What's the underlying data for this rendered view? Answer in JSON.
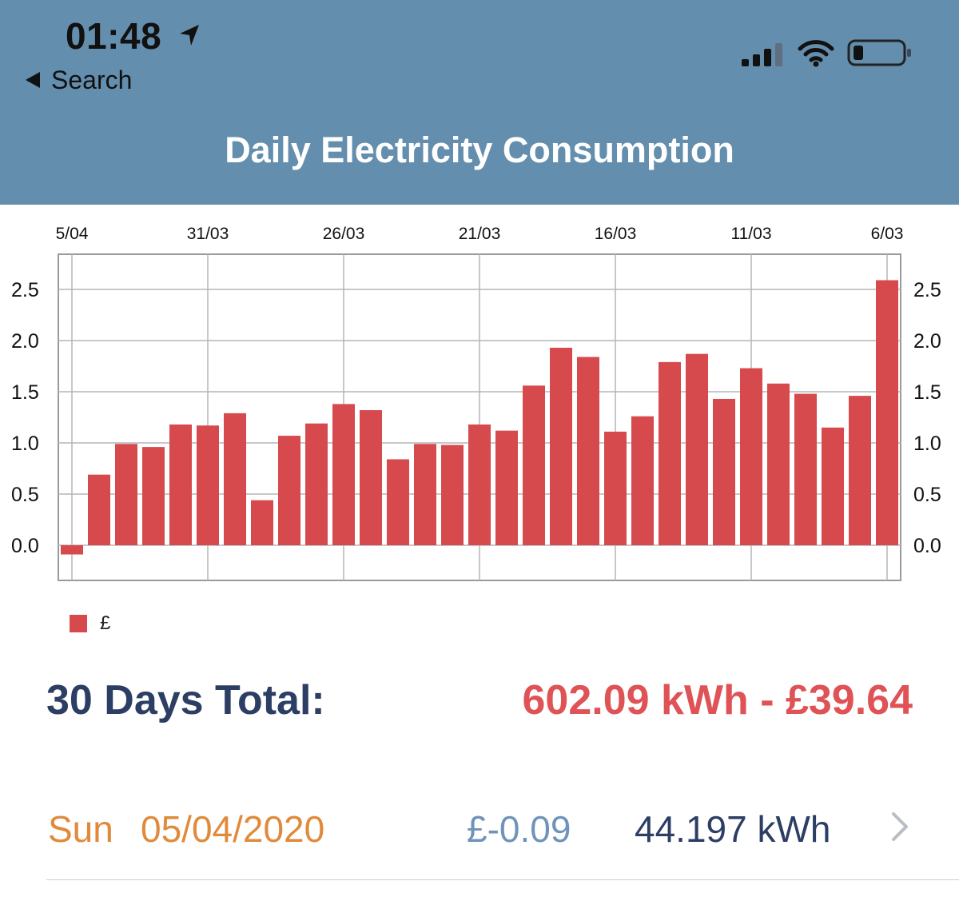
{
  "status_bar": {
    "time": "01:48",
    "icons": [
      "location-arrow-icon",
      "cellular-signal-icon",
      "wifi-icon",
      "battery-low-icon"
    ]
  },
  "nav": {
    "back_label": "Search"
  },
  "header": {
    "title": "Daily Electricity Consumption"
  },
  "colors": {
    "header_bg": "#648ead",
    "bar": "#d64a4d",
    "total_label": "#2c3e63",
    "total_value": "#df5356",
    "date": "#e08a3b",
    "cost": "#6f93b9",
    "kwh": "#2c3e63"
  },
  "chart_data": {
    "type": "bar",
    "title": "",
    "xlabel": "",
    "ylabel": "",
    "x_axis_position": "top",
    "y_axes": [
      "left",
      "right"
    ],
    "ylim": [
      -0.1,
      2.75
    ],
    "y_ticks": [
      "0.0",
      "0.5",
      "1.0",
      "1.5",
      "2.0",
      "2.5"
    ],
    "x_ticks": [
      "5/04",
      "31/03",
      "26/03",
      "21/03",
      "16/03",
      "11/03",
      "6/03"
    ],
    "grid": true,
    "legend_position": "bottom-left",
    "categories": [
      "5/04",
      "4/04",
      "3/04",
      "2/04",
      "1/04",
      "31/03",
      "30/03",
      "29/03",
      "28/03",
      "27/03",
      "26/03",
      "25/03",
      "24/03",
      "23/03",
      "22/03",
      "21/03",
      "20/03",
      "19/03",
      "18/03",
      "17/03",
      "16/03",
      "15/03",
      "14/03",
      "13/03",
      "12/03",
      "11/03",
      "10/03",
      "9/03",
      "8/03",
      "7/03",
      "6/03"
    ],
    "series": [
      {
        "name": "£",
        "color": "#d64a4d",
        "values": [
          -0.09,
          0.69,
          0.99,
          0.96,
          1.18,
          1.17,
          1.29,
          0.44,
          1.07,
          1.19,
          1.38,
          1.32,
          0.84,
          0.99,
          0.98,
          1.18,
          1.12,
          1.56,
          1.93,
          1.84,
          1.11,
          1.26,
          1.79,
          1.87,
          1.43,
          1.73,
          1.58,
          1.48,
          1.15,
          1.46,
          2.59
        ]
      }
    ]
  },
  "legend": {
    "swatch_label": "£"
  },
  "summary": {
    "label": "30 Days Total:",
    "value": "602.09 kWh - £39.64"
  },
  "selected_day": {
    "weekday": "Sun",
    "date": "05/04/2020",
    "cost": "£-0.09",
    "kwh": "44.197 kWh"
  }
}
